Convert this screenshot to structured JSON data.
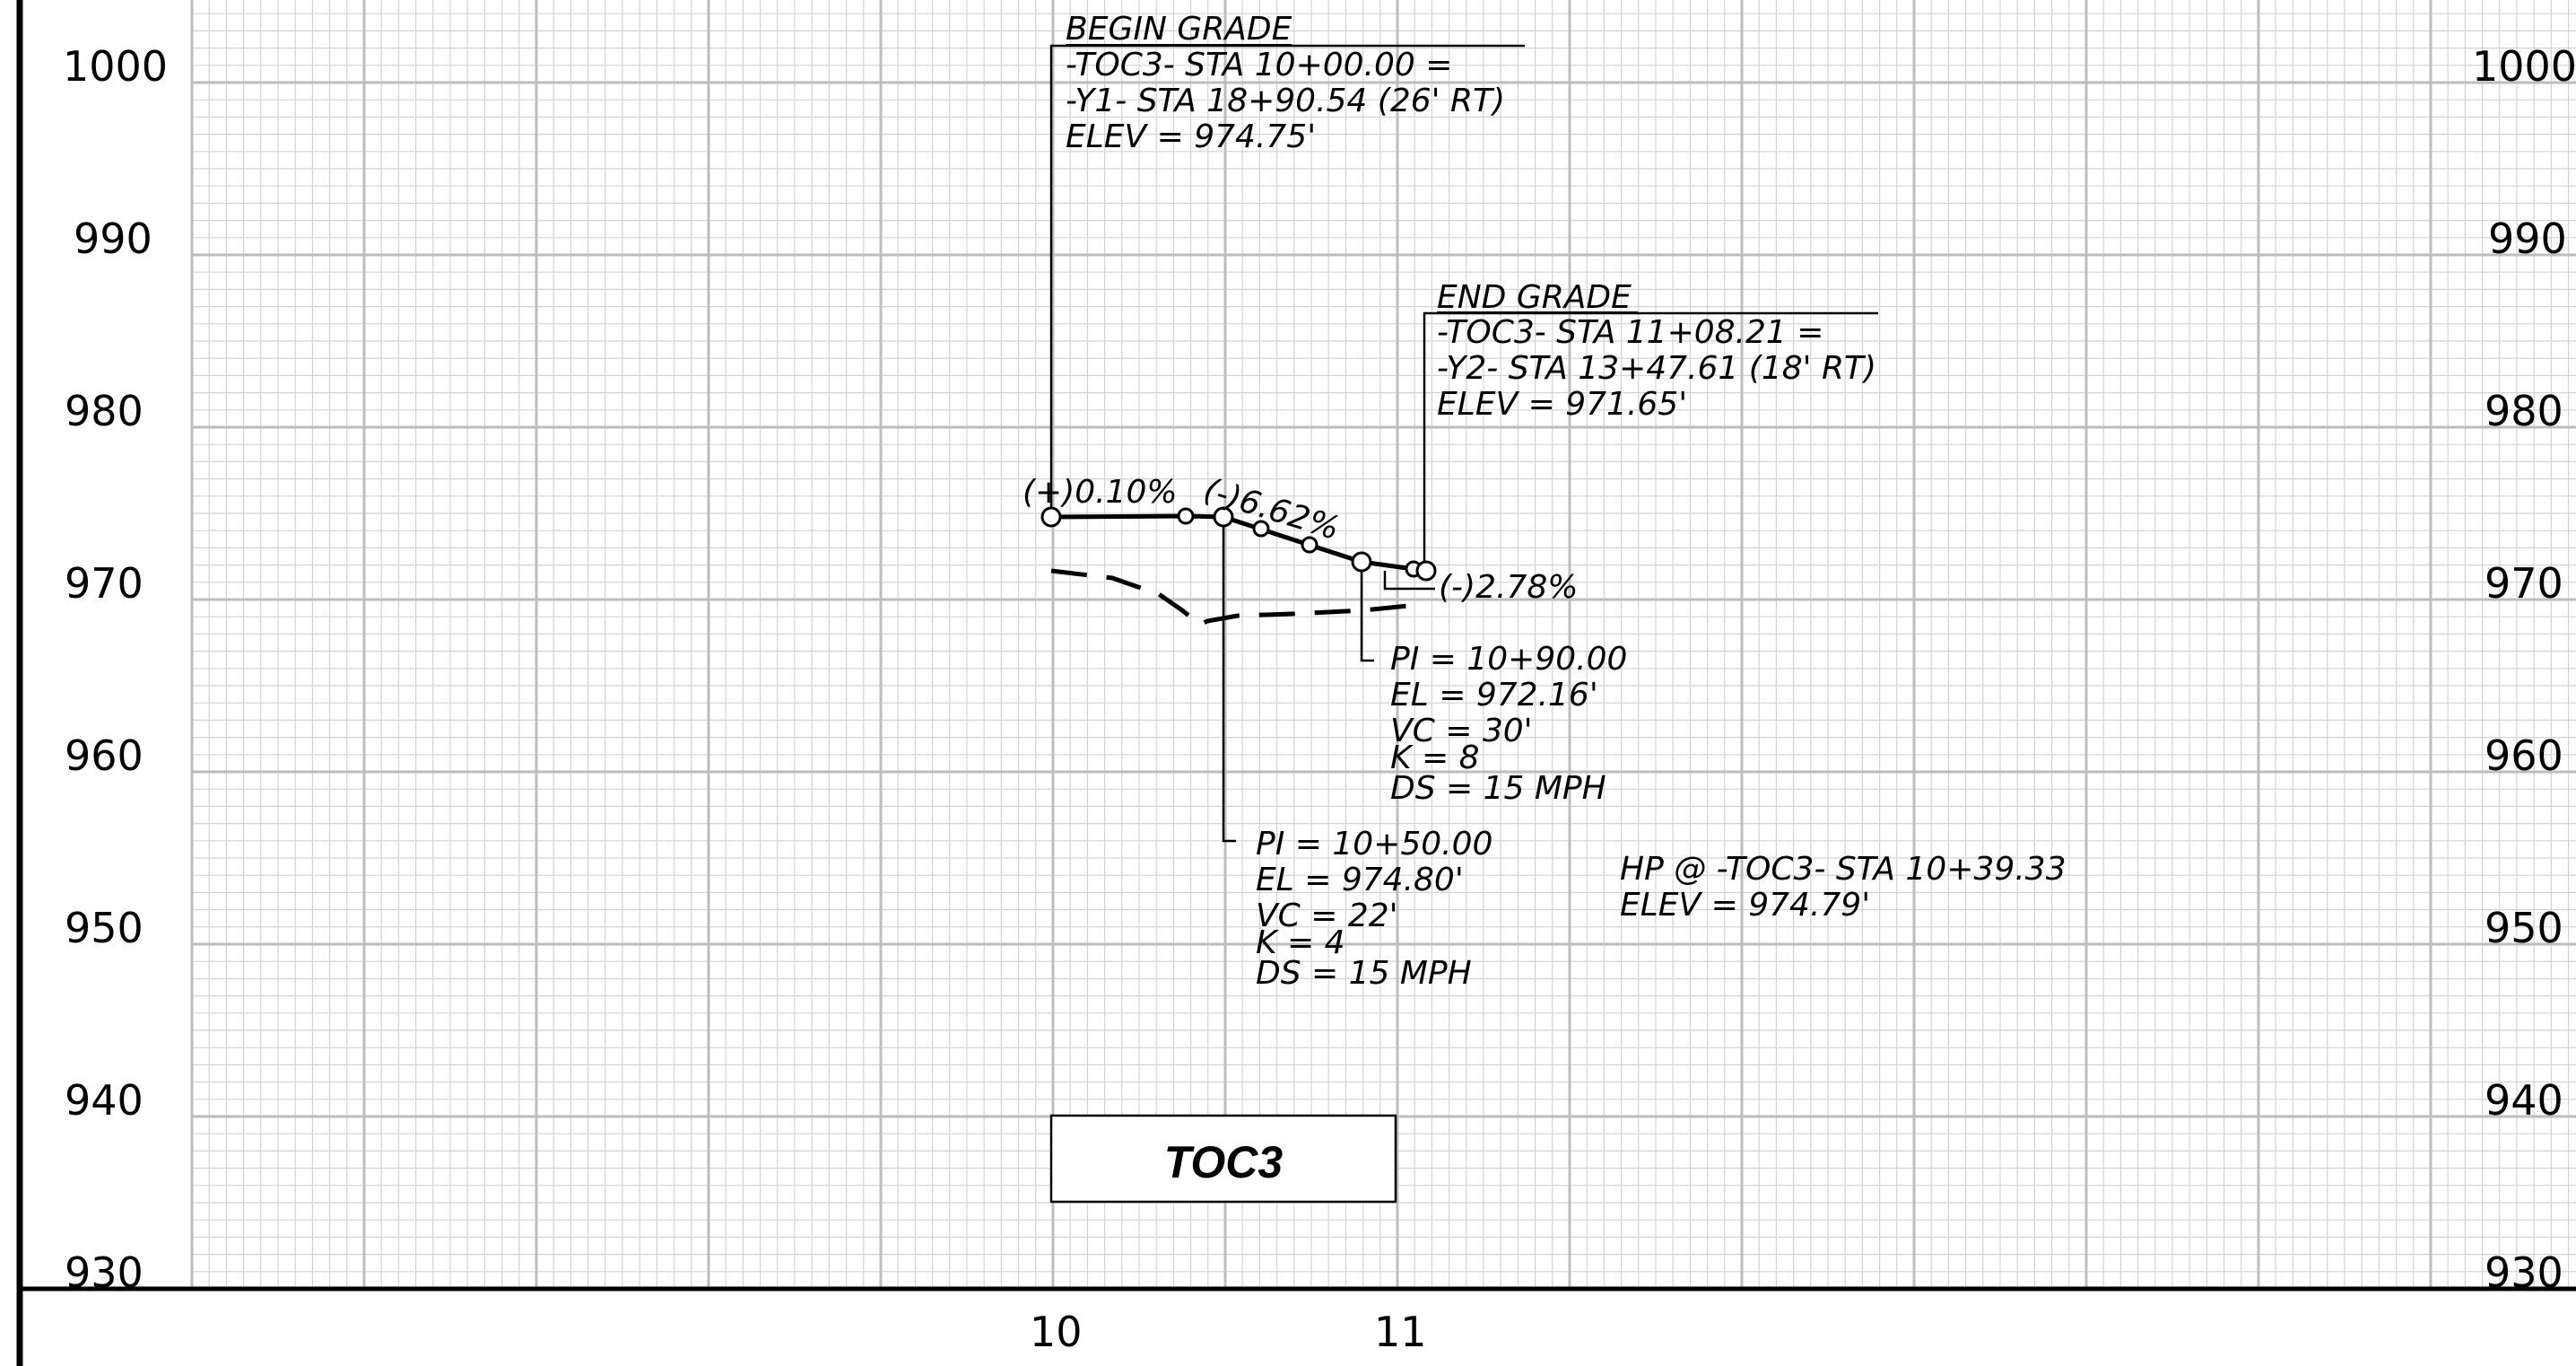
{
  "profile": {
    "elevation_ticks": [
      "1000",
      "990",
      "980",
      "970",
      "960",
      "950",
      "940",
      "930"
    ],
    "station_ticks": [
      "10",
      "11"
    ],
    "title": "TOC3"
  },
  "begin_grade": {
    "heading": "BEGIN GRADE",
    "line1": "-TOC3-  STA 10+00.00  =",
    "line2": "-Y1-  STA 18+90.54 (26' RT)",
    "line3": "ELEV  =  974.75'"
  },
  "end_grade": {
    "heading": "END GRADE",
    "line1": "-TOC3-  STA 11+08.21 =",
    "line2": "-Y2-  STA 13+47.61 (18' RT)",
    "line3": "ELEV  =  971.65'"
  },
  "grades": {
    "g1": "(+)0.10%",
    "g2": "(-)6.62%",
    "g3": "(-)2.78%"
  },
  "pi1": {
    "pi": "PI =  10+50.00",
    "el": "EL  =  974.80'",
    "vc": "VC  =  22'",
    "k": "K  =  4",
    "ds": "DS  =  15  MPH"
  },
  "pi2": {
    "pi": "PI =  10+90.00",
    "el": "EL  =  972.16'",
    "vc": "VC  =  30'",
    "k": "K  =  8",
    "ds": "DS  =  15  MPH"
  },
  "hp": {
    "line1": "HP  @  -TOC3-  STA 10+39.33",
    "line2": "ELEV  =  974.79'"
  }
}
